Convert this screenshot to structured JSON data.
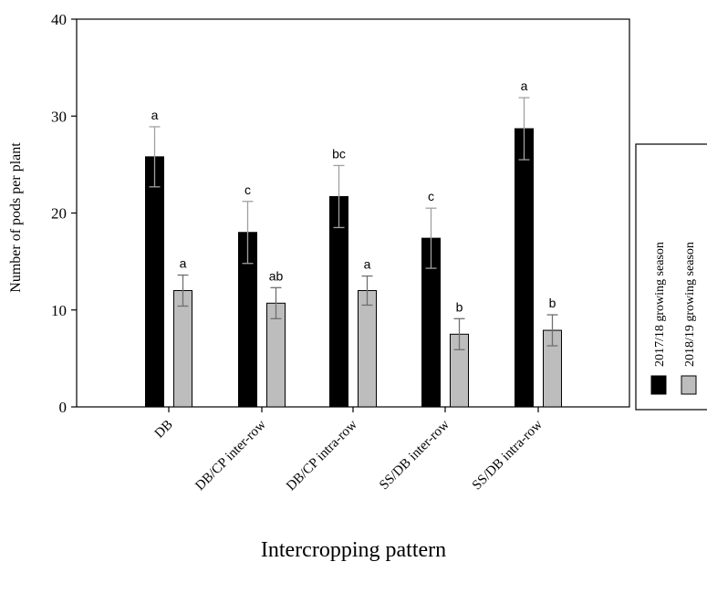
{
  "chart_data": {
    "type": "bar",
    "xlabel": "Intercropping pattern",
    "ylabel": "Number of pods per plant",
    "ylim": [
      0,
      40
    ],
    "yticks": [
      0,
      10,
      20,
      30,
      40
    ],
    "categories": [
      "DB",
      "DB/CP inter-row",
      "DB/CP intra-row",
      "SS/DB inter-row",
      "SS/DB intra-row"
    ],
    "series": [
      {
        "name": "2017/18 growing season",
        "color": "#000000",
        "values": [
          25.8,
          18.0,
          21.7,
          17.4,
          28.7
        ],
        "errors": [
          3.1,
          3.2,
          3.2,
          3.1,
          3.2
        ],
        "letters": [
          "a",
          "c",
          "bc",
          "c",
          "a"
        ]
      },
      {
        "name": "2018/19 growing season",
        "color": "#bdbdbd",
        "values": [
          12.0,
          10.7,
          12.0,
          7.5,
          7.9
        ],
        "errors": [
          1.6,
          1.6,
          1.5,
          1.6,
          1.6
        ],
        "letters": [
          "a",
          "ab",
          "a",
          "b",
          "b"
        ]
      }
    ],
    "grid": false,
    "legend_position": "right"
  }
}
